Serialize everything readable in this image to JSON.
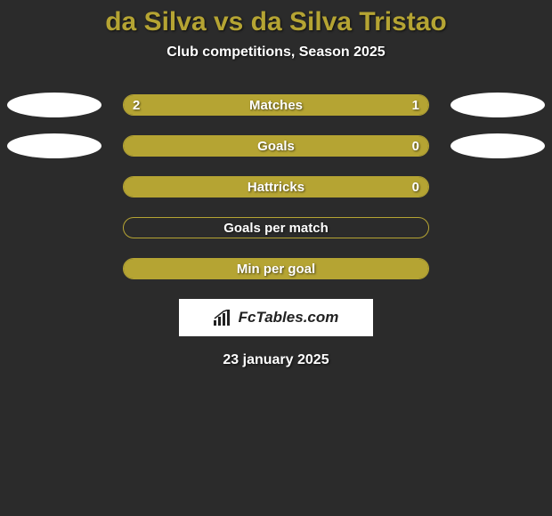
{
  "title": "da Silva vs da Silva Tristao",
  "subtitle": "Club competitions, Season 2025",
  "datestamp": "23 january 2025",
  "branding_text": "FcTables.com",
  "colors": {
    "background": "#2b2b2b",
    "accent": "#b5a433",
    "bar_fill": "#b5a433",
    "bar_border": "#b5a433",
    "text": "#ffffff",
    "oval": "#ffffff",
    "brand_bg": "#ffffff",
    "brand_text": "#222222"
  },
  "stats": [
    {
      "label": "Matches",
      "left_value": "2",
      "right_value": "1",
      "left_pct": 66.7,
      "right_pct": 33.3,
      "show_left_oval": true,
      "show_right_oval": true
    },
    {
      "label": "Goals",
      "left_value": "",
      "right_value": "0",
      "left_pct": 100,
      "right_pct": 0,
      "show_left_oval": true,
      "show_right_oval": true
    },
    {
      "label": "Hattricks",
      "left_value": "",
      "right_value": "0",
      "left_pct": 100,
      "right_pct": 0,
      "show_left_oval": false,
      "show_right_oval": false
    },
    {
      "label": "Goals per match",
      "left_value": "",
      "right_value": "",
      "left_pct": 0,
      "right_pct": 0,
      "show_left_oval": false,
      "show_right_oval": false
    },
    {
      "label": "Min per goal",
      "left_value": "",
      "right_value": "",
      "left_pct": 100,
      "right_pct": 0,
      "show_left_oval": false,
      "show_right_oval": false
    }
  ]
}
